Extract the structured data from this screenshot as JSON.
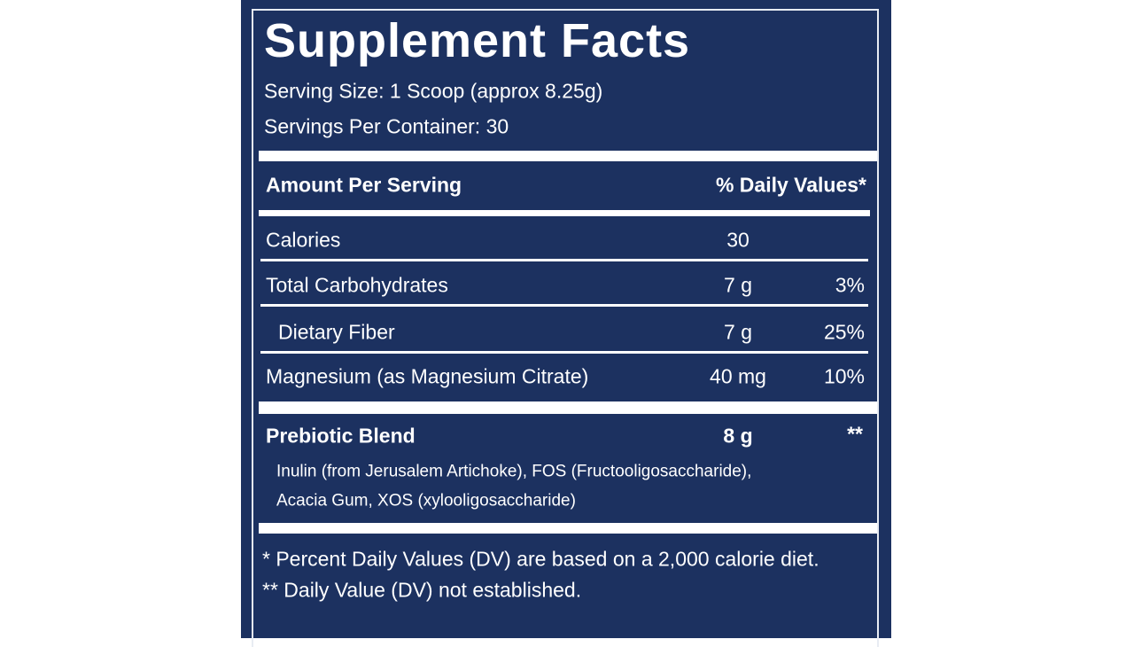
{
  "title": "Supplement Facts",
  "serving_size": "Serving Size: 1 Scoop (approx 8.25g)",
  "servings_per_container": "Servings Per Container: 30",
  "header": {
    "amount": "Amount Per Serving",
    "dv": "% Daily Values*"
  },
  "rows": [
    {
      "name": "Calories",
      "amount": "30"
    },
    {
      "name": "Total Carbohydrates",
      "amount": "7 g",
      "dv": "3%"
    },
    {
      "name": "Dietary Fiber",
      "amount": "7 g",
      "dv": "25%"
    },
    {
      "name": "Magnesium (as Magnesium Citrate)",
      "amount": "40 mg",
      "dv": "10%"
    }
  ],
  "blend": {
    "name": "Prebiotic Blend",
    "amount": "8 g",
    "dv": "**",
    "ingredients": [
      "Inulin (from Jerusalem Artichoke), FOS (Fructooligosaccharide),",
      "Acacia Gum, XOS (xylooligosaccharide)"
    ]
  },
  "footnotes": [
    "* Percent Daily Values (DV) are based on a 2,000 calorie diet.",
    "** Daily Value (DV) not established."
  ]
}
